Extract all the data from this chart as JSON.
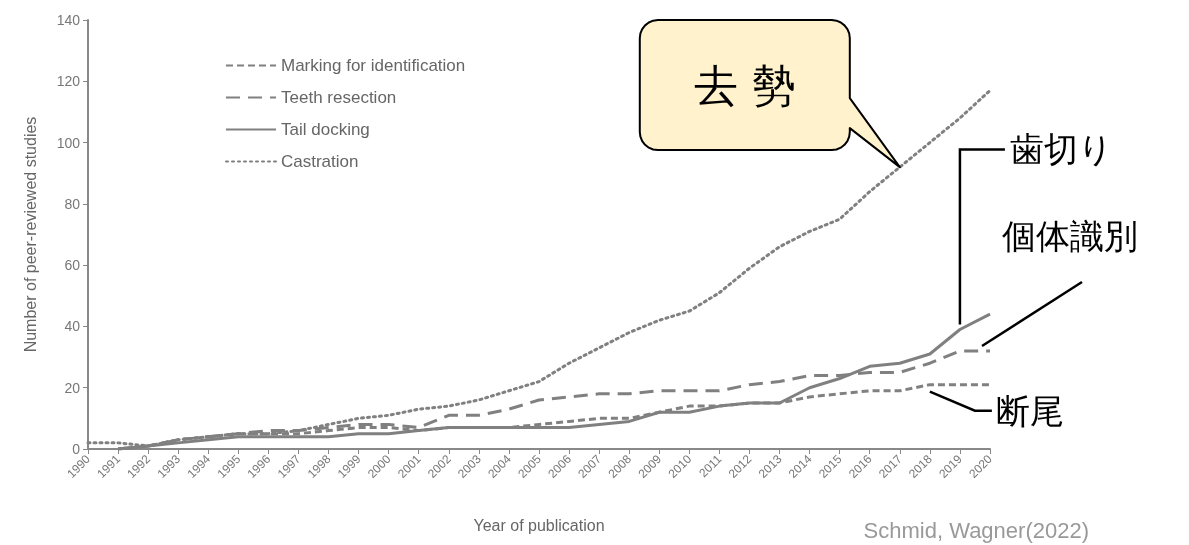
{
  "chart_data": {
    "type": "line",
    "xlabel": "Year of publication",
    "ylabel": "Number of peer-reviewed studies",
    "categories": [
      "1990",
      "1991",
      "1992",
      "1993",
      "1994",
      "1995",
      "1996",
      "1997",
      "1998",
      "1999",
      "2000",
      "2001",
      "2002",
      "2003",
      "2004",
      "2005",
      "2006",
      "2007",
      "2008",
      "2009",
      "2010",
      "2011",
      "2012",
      "2013",
      "2014",
      "2015",
      "2016",
      "2017",
      "2018",
      "2019",
      "2020"
    ],
    "series": [
      {
        "name": "Marking for identification",
        "color": "#808080",
        "line_style": "dashed",
        "values": [
          null,
          0,
          1,
          3,
          4,
          5,
          5,
          5,
          6,
          7,
          7,
          6,
          7,
          7,
          7,
          8,
          9,
          10,
          10,
          12,
          14,
          14,
          15,
          15,
          17,
          18,
          19,
          19,
          21,
          21,
          21
        ]
      },
      {
        "name": "Teeth resection",
        "color": "#808080",
        "line_style": "dashed",
        "values": [
          null,
          0,
          1,
          3,
          4,
          5,
          6,
          6,
          7,
          8,
          8,
          7,
          11,
          11,
          13,
          16,
          17,
          18,
          18,
          19,
          19,
          19,
          21,
          22,
          24,
          24,
          25,
          25,
          28,
          32,
          32
        ]
      },
      {
        "name": "Tail docking",
        "color": "#808080",
        "line_style": "solid",
        "values": [
          null,
          0,
          1,
          2,
          3,
          4,
          4,
          4,
          4,
          5,
          5,
          6,
          7,
          7,
          7,
          7,
          7,
          8,
          9,
          12,
          12,
          14,
          15,
          15,
          20,
          23,
          27,
          28,
          31,
          39,
          44
        ]
      },
      {
        "name": "Castration",
        "color": "#808080",
        "line_style": "dotted",
        "values": [
          2,
          2,
          1,
          3,
          4,
          5,
          5,
          6,
          8,
          10,
          11,
          13,
          14,
          16,
          19,
          22,
          28,
          33,
          38,
          42,
          45,
          51,
          59,
          66,
          71,
          75,
          84,
          92,
          100,
          108,
          117
        ]
      }
    ],
    "ylim": [
      0,
      140
    ],
    "yticks": [
      0,
      20,
      40,
      60,
      80,
      100,
      120,
      140
    ],
    "grid": false,
    "legend": "top left",
    "marker": "none",
    "annotations": [
      {
        "text": "去 勢",
        "x": "2017",
        "y": 92
      },
      {
        "text": "歯切り",
        "x": "2019",
        "y": 39
      },
      {
        "text": "個体識別",
        "x": "2020",
        "y": 32
      },
      {
        "text": "断尾",
        "x": "2018",
        "y": 21
      },
      "Schmid, Wagner(2022)"
    ]
  }
}
